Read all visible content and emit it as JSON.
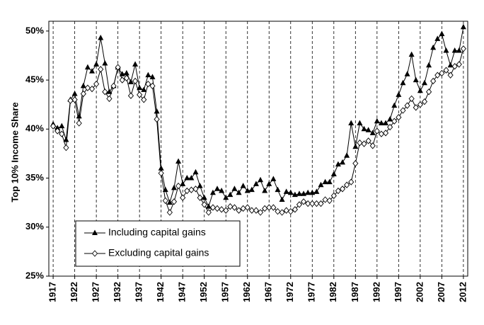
{
  "chart_data": {
    "type": "line",
    "ylabel": "Top 10% Income Share",
    "x": [
      1917,
      1918,
      1919,
      1920,
      1921,
      1922,
      1923,
      1924,
      1925,
      1926,
      1927,
      1928,
      1929,
      1930,
      1931,
      1932,
      1933,
      1934,
      1935,
      1936,
      1937,
      1938,
      1939,
      1940,
      1941,
      1942,
      1943,
      1944,
      1945,
      1946,
      1947,
      1948,
      1949,
      1950,
      1951,
      1952,
      1953,
      1954,
      1955,
      1956,
      1957,
      1958,
      1959,
      1960,
      1961,
      1962,
      1963,
      1964,
      1965,
      1966,
      1967,
      1968,
      1969,
      1970,
      1971,
      1972,
      1973,
      1974,
      1975,
      1976,
      1977,
      1978,
      1979,
      1980,
      1981,
      1982,
      1983,
      1984,
      1985,
      1986,
      1987,
      1988,
      1989,
      1990,
      1991,
      1992,
      1993,
      1994,
      1995,
      1996,
      1997,
      1998,
      1999,
      2000,
      2001,
      2002,
      2003,
      2004,
      2005,
      2006,
      2007,
      2008,
      2009,
      2010,
      2011,
      2012
    ],
    "series": [
      {
        "name": "Including capital gains",
        "color": "#000000",
        "marker": "triangle",
        "values": [
          40.5,
          40.1,
          40.3,
          38.9,
          43.0,
          43.6,
          41.3,
          44.4,
          46.3,
          45.9,
          46.6,
          49.3,
          46.7,
          43.8,
          44.4,
          46.3,
          45.6,
          45.7,
          44.8,
          46.6,
          44.2,
          44.0,
          45.5,
          45.3,
          41.8,
          36.0,
          33.8,
          32.5,
          34.0,
          36.7,
          34.4,
          35.0,
          35.0,
          35.6,
          34.2,
          33.0,
          32.1,
          33.5,
          33.9,
          33.7,
          33.0,
          33.3,
          33.9,
          33.5,
          34.2,
          33.7,
          33.8,
          34.4,
          34.8,
          33.7,
          34.4,
          34.9,
          33.8,
          32.8,
          33.6,
          33.5,
          33.3,
          33.4,
          33.4,
          33.5,
          33.5,
          33.6,
          34.3,
          34.6,
          34.6,
          35.4,
          36.4,
          36.6,
          37.3,
          40.6,
          38.2,
          40.6,
          40.0,
          39.9,
          39.6,
          40.8,
          40.6,
          40.6,
          41.0,
          42.4,
          43.5,
          44.7,
          45.6,
          47.6,
          45.0,
          43.9,
          44.7,
          46.5,
          48.3,
          49.2,
          49.7,
          48.0,
          46.5,
          48.0,
          48.0,
          50.4
        ]
      },
      {
        "name": "Excluding capital gains",
        "color": "#000000",
        "marker": "diamond",
        "values": [
          40.3,
          39.8,
          39.5,
          38.1,
          42.9,
          43.0,
          40.6,
          43.6,
          44.2,
          44.1,
          44.6,
          46.1,
          43.8,
          43.1,
          44.4,
          46.3,
          45.0,
          45.2,
          43.4,
          44.9,
          43.5,
          43.0,
          44.6,
          44.4,
          41.0,
          35.5,
          32.7,
          31.5,
          32.6,
          34.2,
          33.0,
          33.7,
          33.8,
          33.9,
          33.0,
          32.3,
          31.5,
          32.0,
          31.9,
          31.8,
          31.7,
          32.1,
          32.0,
          31.7,
          31.9,
          32.0,
          31.7,
          31.7,
          31.5,
          31.9,
          32.0,
          32.0,
          31.6,
          31.5,
          31.7,
          31.6,
          31.8,
          32.3,
          32.6,
          32.4,
          32.4,
          32.4,
          32.4,
          32.8,
          32.7,
          33.2,
          33.7,
          33.9,
          34.3,
          34.6,
          36.5,
          38.6,
          38.5,
          38.8,
          38.3,
          39.8,
          39.5,
          39.6,
          40.2,
          40.8,
          41.2,
          41.9,
          42.4,
          43.1,
          42.2,
          42.5,
          42.8,
          43.8,
          44.9,
          45.5,
          45.7,
          46.0,
          45.5,
          46.4,
          46.6,
          48.2
        ]
      }
    ],
    "xlim": [
      1916,
      2013
    ],
    "xticks": [
      1917,
      1922,
      1927,
      1932,
      1937,
      1942,
      1947,
      1952,
      1957,
      1962,
      1967,
      1972,
      1977,
      1982,
      1987,
      1992,
      1997,
      2002,
      2007,
      2012
    ],
    "ylim": [
      25,
      51
    ],
    "yticks": [
      {
        "value": 25,
        "label": "25%"
      },
      {
        "value": 30,
        "label": "30%"
      },
      {
        "value": 35,
        "label": "35%"
      },
      {
        "value": 40,
        "label": "40%"
      },
      {
        "value": 45,
        "label": "45%"
      },
      {
        "value": 50,
        "label": "50%"
      }
    ],
    "grid": "x",
    "legend": "lower left"
  }
}
